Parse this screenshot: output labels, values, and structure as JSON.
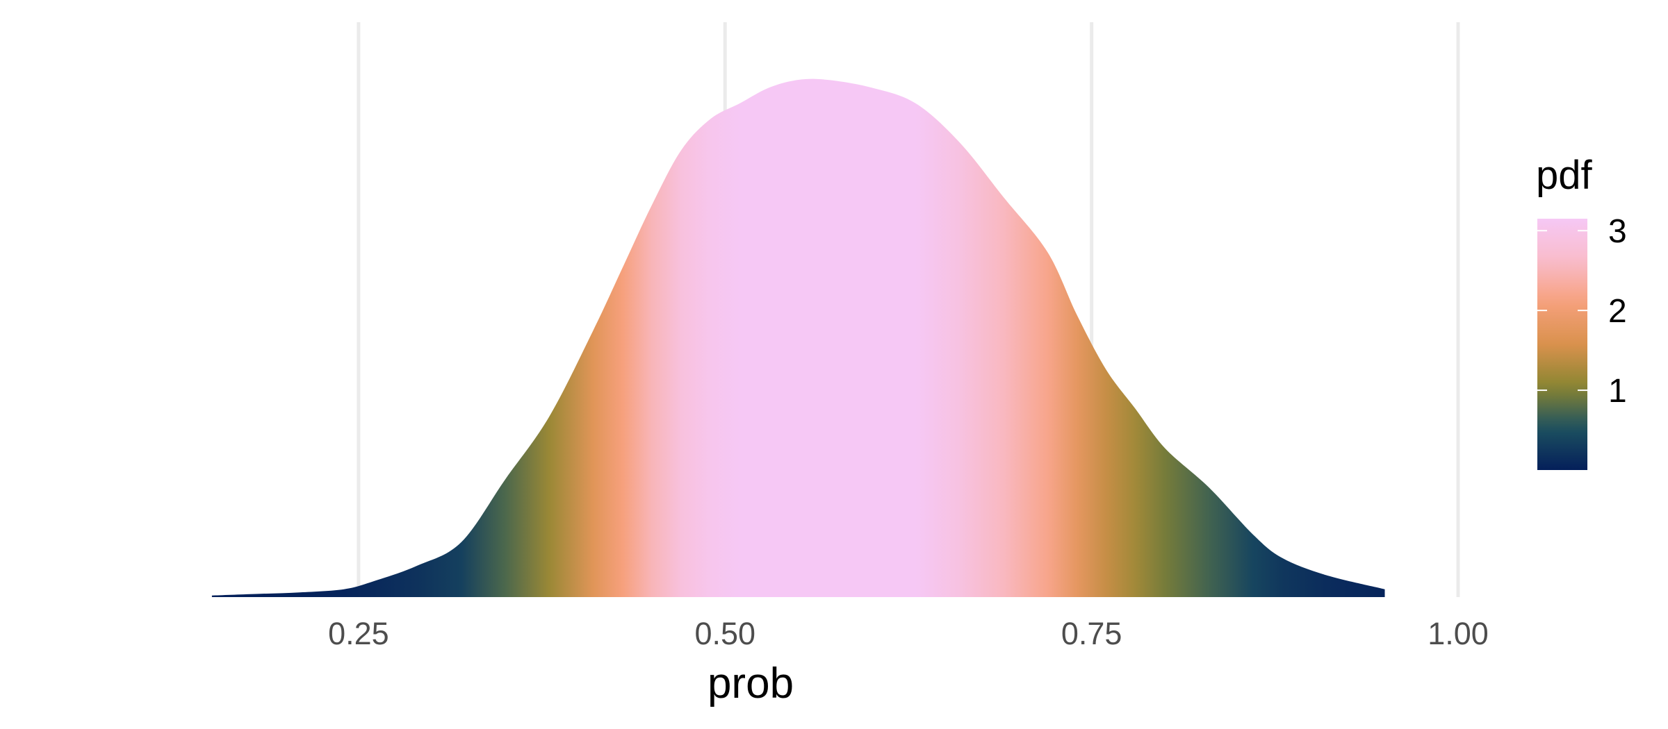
{
  "chart_data": {
    "type": "area",
    "subtype": "density",
    "xlabel": "prob",
    "xlim": [
      0.05,
      1.0
    ],
    "x_ticks": [
      "0.25",
      "0.50",
      "0.75",
      "1.00"
    ],
    "x_tick_values": [
      0.25,
      0.5,
      0.75,
      1.0
    ],
    "ylim": [
      0,
      3.3
    ],
    "grid": "vertical major only",
    "fill": "gradient mapped to pdf",
    "x": [
      0.15,
      0.18,
      0.21,
      0.24,
      0.26,
      0.29,
      0.32,
      0.35,
      0.38,
      0.41,
      0.43,
      0.45,
      0.47,
      0.49,
      0.51,
      0.53,
      0.55,
      0.57,
      0.6,
      0.63,
      0.66,
      0.69,
      0.72,
      0.74,
      0.76,
      0.78,
      0.8,
      0.83,
      0.86,
      0.88,
      0.91,
      0.95
    ],
    "pdf": [
      0.01,
      0.02,
      0.03,
      0.05,
      0.1,
      0.2,
      0.35,
      0.75,
      1.15,
      1.7,
      2.1,
      2.5,
      2.85,
      3.05,
      3.15,
      3.25,
      3.3,
      3.3,
      3.25,
      3.15,
      2.9,
      2.55,
      2.2,
      1.8,
      1.45,
      1.2,
      0.95,
      0.7,
      0.4,
      0.25,
      0.14,
      0.05
    ],
    "legend": {
      "title": "pdf",
      "labels": [
        "3",
        "2",
        "1"
      ],
      "values": [
        3,
        2,
        1
      ],
      "range": [
        0,
        3.15
      ],
      "position": "right"
    },
    "colors": {
      "grid": "#ebebeb",
      "palette": [
        "#041f5a",
        "#1d5160",
        "#8b8631",
        "#d9914d",
        "#f6a07c",
        "#f9bccb",
        "#f6c8f5"
      ]
    }
  }
}
